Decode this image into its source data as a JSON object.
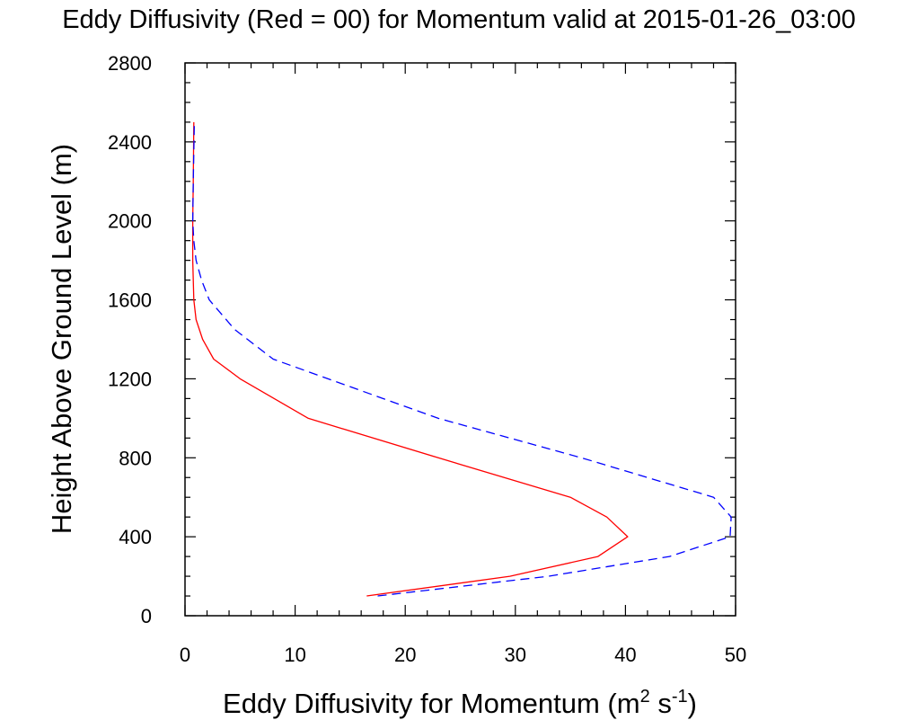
{
  "chart_data": {
    "type": "line",
    "title": "Eddy Diffusivity (Red = 00) for Momentum valid at 2015-01-26_03:00",
    "xlabel": {
      "text": "Eddy Diffusivity for Momentum (m",
      "sup1": "2",
      "mid": " s",
      "sup2": "-1",
      "end": ")"
    },
    "ylabel": "Height Above Ground Level (m)",
    "xlim": [
      0,
      50
    ],
    "ylim": [
      0,
      2800
    ],
    "xticks": [
      0,
      10,
      20,
      30,
      40,
      50
    ],
    "yticks": [
      0,
      400,
      800,
      1200,
      1600,
      2000,
      2400,
      2800
    ],
    "x_minor_step": 2,
    "y_minor_step": 100,
    "grid": false,
    "series": [
      {
        "color": "#ff0000",
        "dash": "solid",
        "points": [
          [
            16.5,
            100
          ],
          [
            29.5,
            200
          ],
          [
            37.5,
            300
          ],
          [
            40.2,
            400
          ],
          [
            38.3,
            500
          ],
          [
            35,
            600
          ],
          [
            23,
            800
          ],
          [
            11.2,
            1000
          ],
          [
            5,
            1200
          ],
          [
            2.6,
            1300
          ],
          [
            1.6,
            1400
          ],
          [
            1,
            1500
          ],
          [
            0.8,
            1600
          ],
          [
            0.7,
            1800
          ],
          [
            0.7,
            2000
          ],
          [
            0.75,
            2200
          ],
          [
            0.8,
            2500
          ]
        ]
      },
      {
        "color": "#0000ff",
        "dash": "dashed",
        "points": [
          [
            17.5,
            100
          ],
          [
            33,
            200
          ],
          [
            44,
            300
          ],
          [
            49.5,
            400
          ],
          [
            49.6,
            500
          ],
          [
            48,
            600
          ],
          [
            36,
            800
          ],
          [
            23,
            1000
          ],
          [
            8,
            1300
          ],
          [
            4.5,
            1450
          ],
          [
            2.2,
            1600
          ],
          [
            1.5,
            1700
          ],
          [
            1,
            1800
          ],
          [
            0.8,
            1900
          ],
          [
            0.7,
            2000
          ],
          [
            0.75,
            2200
          ],
          [
            0.85,
            2500
          ]
        ]
      }
    ]
  }
}
